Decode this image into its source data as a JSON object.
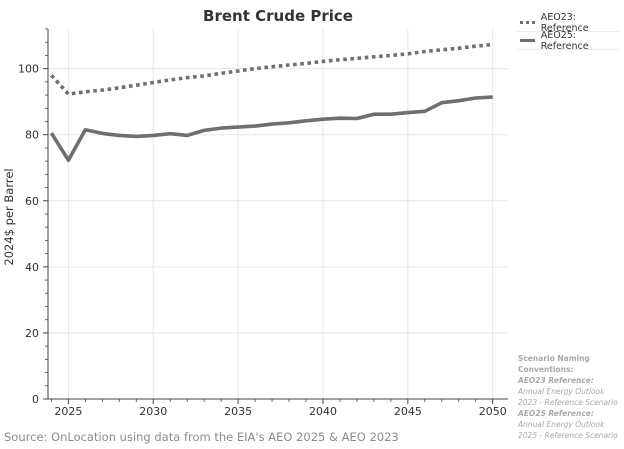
{
  "chart_data": {
    "type": "line",
    "title": "Brent Crude Price",
    "xlabel": "",
    "ylabel": "2024$ per Barrel",
    "xlim": [
      2023.8,
      2050.9
    ],
    "ylim": [
      0,
      112
    ],
    "xticks": [
      2025,
      2030,
      2035,
      2040,
      2045,
      2050
    ],
    "yticks": [
      0,
      20,
      40,
      60,
      80,
      100
    ],
    "grid": true,
    "legend_position": "top-right",
    "series": [
      {
        "name": "AEO23: Reference",
        "style": "dotted",
        "color": "#6f6f6f",
        "x": [
          2024,
          2025,
          2026,
          2027,
          2028,
          2029,
          2030,
          2031,
          2032,
          2033,
          2034,
          2035,
          2036,
          2037,
          2038,
          2039,
          2040,
          2041,
          2042,
          2043,
          2044,
          2045,
          2046,
          2047,
          2048,
          2049,
          2050
        ],
        "values": [
          98.0,
          92.3,
          93.0,
          93.5,
          94.2,
          95.0,
          95.8,
          96.6,
          97.3,
          97.8,
          98.6,
          99.3,
          100.0,
          100.6,
          101.1,
          101.6,
          102.2,
          102.7,
          103.1,
          103.6,
          104.0,
          104.5,
          105.2,
          105.7,
          106.2,
          106.8,
          107.3
        ]
      },
      {
        "name": "AEO25: Reference",
        "style": "solid",
        "color": "#6f6f6f",
        "x": [
          2024,
          2025,
          2026,
          2027,
          2028,
          2029,
          2030,
          2031,
          2032,
          2033,
          2034,
          2035,
          2036,
          2037,
          2038,
          2039,
          2040,
          2041,
          2042,
          2043,
          2044,
          2045,
          2046,
          2047,
          2048,
          2049,
          2050
        ],
        "values": [
          80.5,
          72.3,
          81.5,
          80.4,
          79.8,
          79.5,
          79.8,
          80.3,
          79.8,
          81.3,
          82.0,
          82.3,
          82.6,
          83.2,
          83.6,
          84.2,
          84.7,
          85.0,
          84.9,
          86.2,
          86.2,
          86.7,
          87.1,
          89.7,
          90.3,
          91.1,
          91.4
        ]
      }
    ]
  },
  "notes": {
    "title": "Scenario Naming Conventions:",
    "items": [
      {
        "key": "AEO23 Reference:",
        "value": "Annual Energy Outlook 2023 - Reference Scenario"
      },
      {
        "key": "AEO25 Reference:",
        "value": "Annual Energy Outlook 2025 - Reference Scenario"
      }
    ]
  },
  "source": "Source: OnLocation using data from the EIA's AEO 2025 & AEO 2023",
  "colors": {
    "line": "#6f6f6f",
    "grid": "#e6e6e6",
    "axis": "#444444",
    "text": "#333333",
    "muted": "#a8a8a8"
  }
}
